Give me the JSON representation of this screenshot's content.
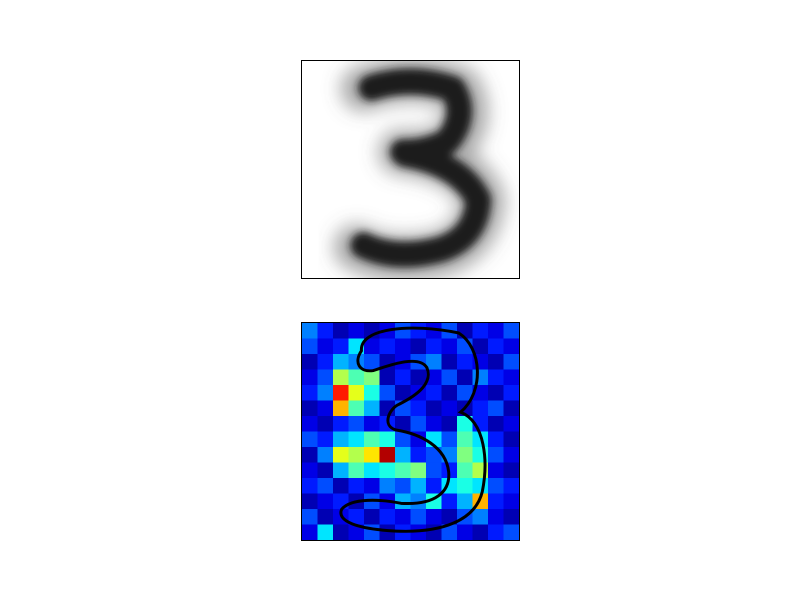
{
  "figure": {
    "grid_size": 14,
    "colormap": "jet",
    "colors": {
      "background": "#ffffff",
      "frame": "#000000",
      "heatmap_base": "#00008f",
      "contour": "#000000"
    },
    "heatmap_values": [
      [
        0.25,
        0.15,
        0.05,
        0.1,
        0.05,
        0.1,
        0.2,
        0.15,
        0.1,
        0.2,
        0.05,
        0.15,
        0.1,
        0.2
      ],
      [
        0.2,
        0.1,
        0.15,
        0.35,
        0.1,
        0.15,
        0.1,
        0.05,
        0.15,
        0.1,
        0.2,
        0.05,
        0.15,
        0.1
      ],
      [
        0.05,
        0.15,
        0.3,
        0.25,
        0.2,
        0.05,
        0.1,
        0.2,
        0.25,
        0.05,
        0.15,
        0.1,
        0.05,
        0.2
      ],
      [
        0.1,
        0.2,
        0.55,
        0.45,
        0.5,
        0.05,
        0.15,
        0.05,
        0.1,
        0.2,
        0.05,
        0.25,
        0.15,
        0.1
      ],
      [
        0.15,
        0.25,
        0.85,
        0.6,
        0.4,
        0.2,
        0.05,
        0.1,
        0.15,
        0.05,
        0.2,
        0.1,
        0.05,
        0.15
      ],
      [
        0.05,
        0.1,
        0.7,
        0.45,
        0.3,
        0.05,
        0.2,
        0.15,
        0.05,
        0.1,
        0.05,
        0.15,
        0.2,
        0.05
      ],
      [
        0.1,
        0.05,
        0.15,
        0.2,
        0.1,
        0.15,
        0.05,
        0.2,
        0.1,
        0.05,
        0.4,
        0.15,
        0.05,
        0.1
      ],
      [
        0.2,
        0.15,
        0.3,
        0.35,
        0.45,
        0.4,
        0.2,
        0.1,
        0.35,
        0.2,
        0.45,
        0.35,
        0.15,
        0.05
      ],
      [
        0.05,
        0.25,
        0.6,
        0.55,
        0.65,
        0.95,
        0.3,
        0.15,
        0.2,
        0.25,
        0.5,
        0.4,
        0.2,
        0.1
      ],
      [
        0.1,
        0.05,
        0.3,
        0.45,
        0.35,
        0.4,
        0.45,
        0.5,
        0.2,
        0.15,
        0.45,
        0.55,
        0.1,
        0.05
      ],
      [
        0.15,
        0.2,
        0.05,
        0.15,
        0.1,
        0.25,
        0.2,
        0.3,
        0.15,
        0.35,
        0.4,
        0.35,
        0.2,
        0.15
      ],
      [
        0.05,
        0.1,
        0.15,
        0.05,
        0.2,
        0.1,
        0.3,
        0.25,
        0.4,
        0.15,
        0.3,
        0.7,
        0.15,
        0.1
      ],
      [
        0.2,
        0.05,
        0.1,
        0.15,
        0.05,
        0.15,
        0.1,
        0.2,
        0.1,
        0.05,
        0.2,
        0.25,
        0.1,
        0.05
      ],
      [
        0.1,
        0.35,
        0.05,
        0.1,
        0.2,
        0.05,
        0.15,
        0.1,
        0.05,
        0.2,
        0.1,
        0.05,
        0.15,
        0.2
      ]
    ]
  }
}
